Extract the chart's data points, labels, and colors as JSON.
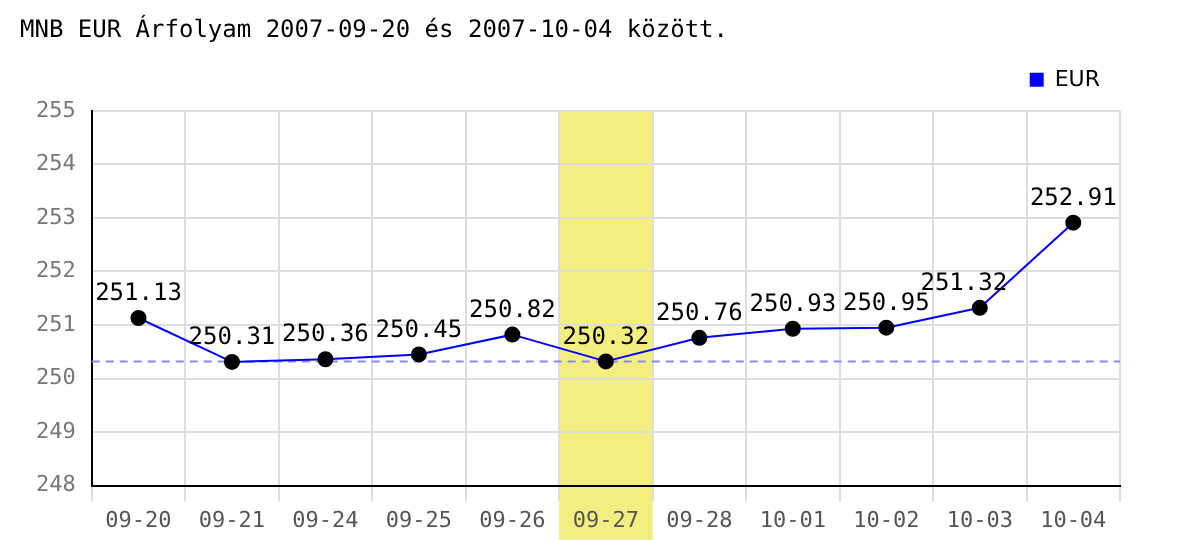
{
  "chart_data": {
    "type": "line",
    "title": "MNB EUR Árfolyam 2007-09-20 és 2007-10-04 között.",
    "categories": [
      "09-20",
      "09-21",
      "09-24",
      "09-25",
      "09-26",
      "09-27",
      "09-28",
      "10-01",
      "10-02",
      "10-03",
      "10-04"
    ],
    "series": [
      {
        "name": "EUR",
        "color": "#0000ff",
        "values": [
          251.13,
          250.31,
          250.36,
          250.45,
          250.82,
          250.32,
          250.76,
          250.93,
          250.95,
          251.32,
          252.91
        ]
      }
    ],
    "ylim": [
      248,
      255
    ],
    "yticks": [
      248,
      249,
      250,
      251,
      252,
      253,
      254,
      255
    ],
    "grid": true,
    "legend": "top right",
    "marker": "circle",
    "line_style": "solid",
    "data_labels": true,
    "ref_lines": [
      {
        "axis": "y",
        "value": 250.32,
        "color": "#8888ff",
        "line_style": "dashed"
      }
    ],
    "bands": [
      {
        "axis": "x",
        "from": "09-27",
        "to": "09-27",
        "color": "#f2ef80"
      }
    ]
  }
}
